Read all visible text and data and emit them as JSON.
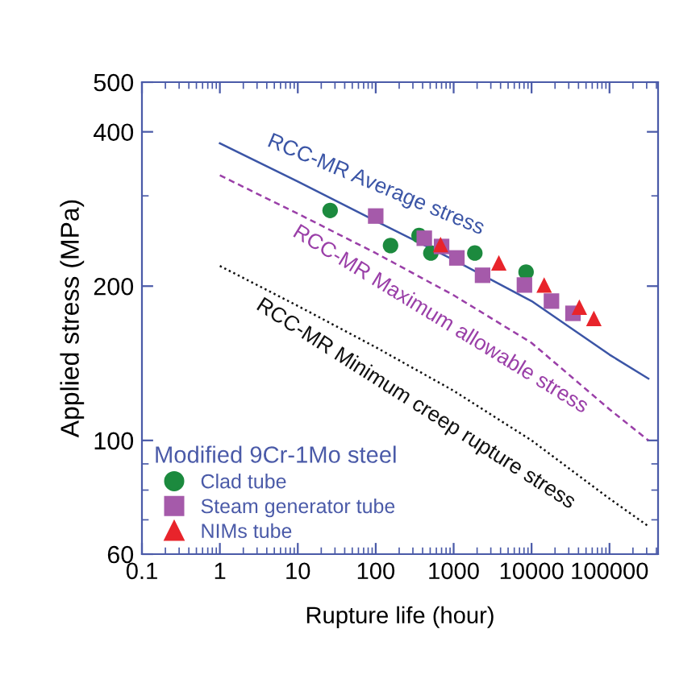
{
  "chart_data": {
    "type": "scatter",
    "xlabel": "Rupture life (hour)",
    "ylabel": "Applied stress (MPa)",
    "legend_title": "Modified 9Cr-1Mo steel",
    "legend": "bottom left",
    "log": "xy",
    "grid": false,
    "xlim": [
      0.1,
      420000
    ],
    "xticks": [
      {
        "value": 0.1,
        "label": "0.1"
      },
      1,
      10,
      100,
      1000,
      10000,
      100000
    ],
    "ylim": [
      60,
      500
    ],
    "yticks": [
      60,
      100,
      200,
      400,
      500
    ],
    "series": [
      {
        "type": "line",
        "line_style": "solid",
        "color": "#3b55a6",
        "x": [
          1,
          10,
          100,
          1000,
          10000,
          100000,
          316000
        ],
        "values": [
          380,
          320,
          268,
          225,
          187,
          147,
          132
        ]
      },
      {
        "type": "line",
        "line_style": "dashed",
        "color": "#9a3fa8",
        "x": [
          1,
          10,
          100,
          1000,
          10000,
          100000,
          316000
        ],
        "values": [
          329,
          277,
          232,
          192,
          155,
          115,
          100
        ]
      },
      {
        "type": "line",
        "line_style": "dotted",
        "color": "#111111",
        "x": [
          1,
          10,
          100,
          1000,
          10000,
          100000,
          316000
        ],
        "values": [
          219,
          183,
          152,
          125,
          100,
          77,
          68
        ]
      },
      {
        "name": "Clad tube",
        "marker": "circle",
        "color": "#1c8a3e",
        "x": [
          26,
          155,
          360,
          510,
          1870,
          8500
        ],
        "values": [
          281,
          240,
          251,
          232,
          232,
          213
        ]
      },
      {
        "name": "Steam generator tube",
        "marker": "square",
        "color": "#a55aaa",
        "x": [
          100,
          420,
          700,
          1100,
          2350,
          8100,
          18000,
          34000
        ],
        "values": [
          274,
          248,
          239,
          227,
          210,
          201,
          187,
          177
        ]
      },
      {
        "name": "NIMs tube",
        "marker": "triangle",
        "color": "#e8242b",
        "x": [
          680,
          3800,
          14500,
          41000,
          63000
        ],
        "values": [
          241,
          222,
          201,
          182,
          173
        ]
      }
    ],
    "annotations": [
      "RCC-MR Average stress",
      "RCC-MR Maximum allowable stress",
      "RCC-MR Minimum creep rupture stress"
    ]
  }
}
